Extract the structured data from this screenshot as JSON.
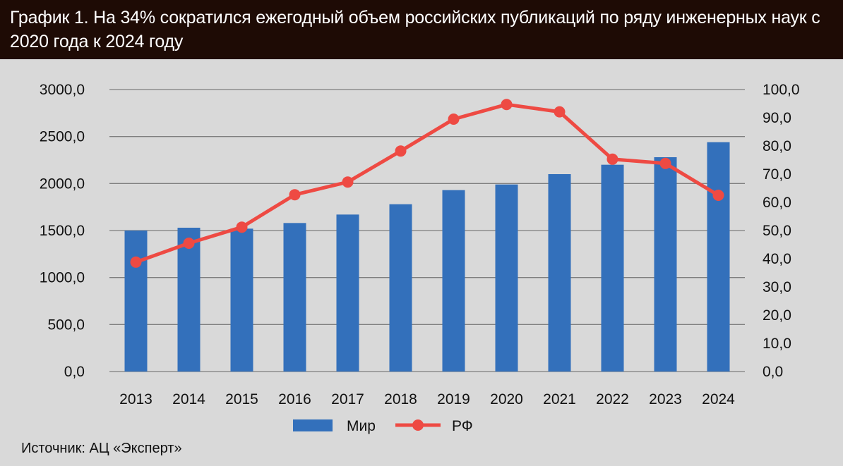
{
  "header": {
    "title": "График 1. На 34% сократился ежегодный объем российских публикаций по ряду инженерных наук с 2020 года к 2024 году"
  },
  "source": "Источник: АЦ «Эксперт»",
  "colors": {
    "header_bg": "#1e0b05",
    "background": "#d9d9d9",
    "bar": "#3370bb",
    "line": "#ee4a43",
    "gridline": "#7f7f7f"
  },
  "chart_data": {
    "type": "bar",
    "categories": [
      "2013",
      "2014",
      "2015",
      "2016",
      "2017",
      "2018",
      "2019",
      "2020",
      "2021",
      "2022",
      "2023",
      "2024"
    ],
    "series": [
      {
        "name": "Мир",
        "type": "bar",
        "axis": "left",
        "values": [
          1500,
          1530,
          1520,
          1580,
          1670,
          1780,
          1930,
          1990,
          2100,
          2200,
          2280,
          2440
        ]
      },
      {
        "name": "РФ",
        "type": "line",
        "axis": "right",
        "values": [
          38.8,
          45.5,
          51.2,
          62.7,
          67.2,
          78.2,
          89.5,
          94.7,
          92.1,
          75.3,
          73.8,
          62.5
        ]
      }
    ],
    "ylim_left": [
      0,
      3000
    ],
    "yticks_left": [
      "0,0",
      "500,0",
      "1000,0",
      "1500,0",
      "2000,0",
      "2500,0",
      "3000,0"
    ],
    "ylim_right": [
      0,
      100
    ],
    "yticks_right": [
      "0,0",
      "10,0",
      "20,0",
      "30,0",
      "40,0",
      "50,0",
      "60,0",
      "70,0",
      "80,0",
      "90,0",
      "100,0"
    ],
    "grid": true,
    "legend": "bottom"
  }
}
